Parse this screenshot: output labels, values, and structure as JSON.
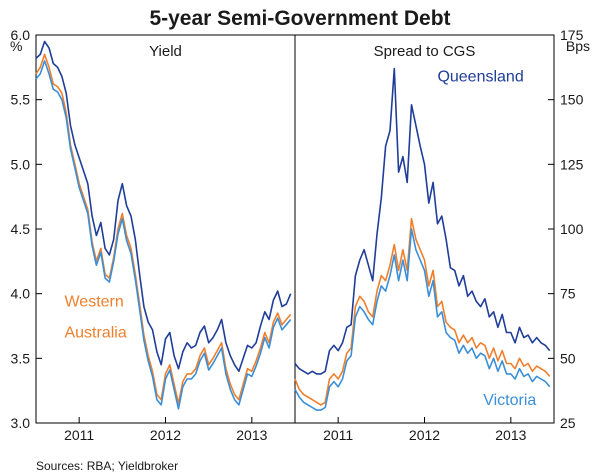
{
  "title": "5-year Semi-Government Debt",
  "source": "Sources: RBA; Yieldbroker",
  "colors": {
    "queensland": "#1f3d99",
    "western_australia": "#f07f2c",
    "victoria": "#3a8fd8",
    "axis": "#000000"
  },
  "chart_data": [
    {
      "type": "line",
      "title": "Yield",
      "y_unit": "%",
      "ylim": [
        3.0,
        6.0
      ],
      "yticks": [
        "3.0",
        "3.5",
        "4.0",
        "4.5",
        "5.0",
        "5.5",
        "6.0"
      ],
      "x_tick_labels": [
        "2011",
        "2012",
        "2013"
      ],
      "x_tick_centers": [
        2011.0,
        2012.0,
        2013.0
      ],
      "xlim": [
        2010.5,
        2013.5
      ],
      "grid": false,
      "series": [
        {
          "key": "queensland",
          "x": [
            2010.5,
            2010.55,
            2010.6,
            2010.65,
            2010.7,
            2010.75,
            2010.8,
            2010.85,
            2010.9,
            2010.95,
            2011.0,
            2011.05,
            2011.1,
            2011.15,
            2011.2,
            2011.25,
            2011.3,
            2011.35,
            2011.4,
            2011.45,
            2011.5,
            2011.55,
            2011.6,
            2011.65,
            2011.7,
            2011.75,
            2011.8,
            2011.85,
            2011.9,
            2011.95,
            2012.0,
            2012.05,
            2012.1,
            2012.15,
            2012.2,
            2012.25,
            2012.3,
            2012.35,
            2012.4,
            2012.45,
            2012.5,
            2012.55,
            2012.6,
            2012.65,
            2012.7,
            2012.75,
            2012.8,
            2012.85,
            2012.9,
            2012.95,
            2013.0,
            2013.05,
            2013.1,
            2013.15,
            2013.2,
            2013.25,
            2013.3,
            2013.35,
            2013.4,
            2013.45
          ],
          "values": [
            5.82,
            5.85,
            5.95,
            5.9,
            5.78,
            5.75,
            5.68,
            5.55,
            5.3,
            5.15,
            5.05,
            4.95,
            4.85,
            4.6,
            4.45,
            4.55,
            4.35,
            4.3,
            4.42,
            4.72,
            4.85,
            4.68,
            4.6,
            4.42,
            4.15,
            3.9,
            3.78,
            3.72,
            3.55,
            3.45,
            3.65,
            3.7,
            3.52,
            3.42,
            3.55,
            3.62,
            3.58,
            3.6,
            3.7,
            3.75,
            3.62,
            3.66,
            3.72,
            3.8,
            3.62,
            3.52,
            3.45,
            3.4,
            3.5,
            3.6,
            3.58,
            3.62,
            3.75,
            3.86,
            3.8,
            3.95,
            4.02,
            3.9,
            3.92,
            4.0
          ]
        },
        {
          "key": "western_australia",
          "name": "Western Australia",
          "x": [
            2010.5,
            2010.55,
            2010.6,
            2010.65,
            2010.7,
            2010.75,
            2010.8,
            2010.85,
            2010.9,
            2010.95,
            2011.0,
            2011.05,
            2011.1,
            2011.15,
            2011.2,
            2011.25,
            2011.3,
            2011.35,
            2011.4,
            2011.45,
            2011.5,
            2011.55,
            2011.6,
            2011.65,
            2011.7,
            2011.75,
            2011.8,
            2011.85,
            2011.9,
            2011.95,
            2012.0,
            2012.05,
            2012.1,
            2012.15,
            2012.2,
            2012.25,
            2012.3,
            2012.35,
            2012.4,
            2012.45,
            2012.5,
            2012.55,
            2012.6,
            2012.65,
            2012.7,
            2012.75,
            2012.8,
            2012.85,
            2012.9,
            2012.95,
            2013.0,
            2013.05,
            2013.1,
            2013.15,
            2013.2,
            2013.25,
            2013.3,
            2013.35,
            2013.4,
            2013.45
          ],
          "values": [
            5.7,
            5.75,
            5.85,
            5.75,
            5.62,
            5.6,
            5.55,
            5.4,
            5.15,
            5.0,
            4.85,
            4.75,
            4.65,
            4.4,
            4.25,
            4.35,
            4.15,
            4.12,
            4.28,
            4.5,
            4.62,
            4.45,
            4.35,
            4.15,
            3.92,
            3.68,
            3.52,
            3.4,
            3.22,
            3.18,
            3.38,
            3.45,
            3.3,
            3.15,
            3.32,
            3.38,
            3.38,
            3.42,
            3.52,
            3.58,
            3.45,
            3.5,
            3.56,
            3.62,
            3.42,
            3.3,
            3.22,
            3.18,
            3.3,
            3.42,
            3.4,
            3.48,
            3.58,
            3.7,
            3.62,
            3.78,
            3.85,
            3.76,
            3.8,
            3.84
          ]
        },
        {
          "key": "victoria",
          "x": [
            2010.5,
            2010.55,
            2010.6,
            2010.65,
            2010.7,
            2010.75,
            2010.8,
            2010.85,
            2010.9,
            2010.95,
            2011.0,
            2011.05,
            2011.1,
            2011.15,
            2011.2,
            2011.25,
            2011.3,
            2011.35,
            2011.4,
            2011.45,
            2011.5,
            2011.55,
            2011.6,
            2011.65,
            2011.7,
            2011.75,
            2011.8,
            2011.85,
            2011.9,
            2011.95,
            2012.0,
            2012.05,
            2012.1,
            2012.15,
            2012.2,
            2012.25,
            2012.3,
            2012.35,
            2012.4,
            2012.45,
            2012.5,
            2012.55,
            2012.6,
            2012.65,
            2012.7,
            2012.75,
            2012.8,
            2012.85,
            2012.9,
            2012.95,
            2013.0,
            2013.05,
            2013.1,
            2013.15,
            2013.2,
            2013.25,
            2013.3,
            2013.35,
            2013.4,
            2013.45
          ],
          "values": [
            5.66,
            5.7,
            5.8,
            5.7,
            5.58,
            5.56,
            5.5,
            5.36,
            5.12,
            4.97,
            4.82,
            4.72,
            4.62,
            4.37,
            4.22,
            4.32,
            4.12,
            4.09,
            4.25,
            4.46,
            4.58,
            4.41,
            4.31,
            4.11,
            3.88,
            3.64,
            3.48,
            3.36,
            3.18,
            3.14,
            3.34,
            3.41,
            3.26,
            3.11,
            3.28,
            3.34,
            3.34,
            3.38,
            3.48,
            3.54,
            3.41,
            3.46,
            3.52,
            3.58,
            3.38,
            3.26,
            3.18,
            3.14,
            3.26,
            3.38,
            3.36,
            3.44,
            3.54,
            3.66,
            3.58,
            3.74,
            3.81,
            3.72,
            3.76,
            3.8
          ]
        }
      ],
      "labels": [
        {
          "text": "Western",
          "series": "western_australia",
          "x": 2010.83,
          "y": 3.9
        },
        {
          "text": "Australia",
          "series": "western_australia",
          "x": 2010.83,
          "y": 3.66
        }
      ]
    },
    {
      "type": "line",
      "title": "Spread to CGS",
      "y_unit": "Bps",
      "ylim": [
        25,
        175
      ],
      "yticks": [
        "25",
        "50",
        "75",
        "100",
        "125",
        "150",
        "175"
      ],
      "x_tick_labels": [
        "2011",
        "2012",
        "2013"
      ],
      "x_tick_centers": [
        2011.0,
        2012.0,
        2013.0
      ],
      "xlim": [
        2010.5,
        2013.5
      ],
      "grid": false,
      "series": [
        {
          "key": "queensland",
          "name": "Queensland",
          "x": [
            2010.5,
            2010.55,
            2010.6,
            2010.65,
            2010.7,
            2010.75,
            2010.8,
            2010.85,
            2010.9,
            2010.95,
            2011.0,
            2011.05,
            2011.1,
            2011.15,
            2011.2,
            2011.25,
            2011.3,
            2011.35,
            2011.4,
            2011.45,
            2011.5,
            2011.55,
            2011.6,
            2011.65,
            2011.7,
            2011.75,
            2011.8,
            2011.85,
            2011.9,
            2011.95,
            2012.0,
            2012.05,
            2012.1,
            2012.15,
            2012.2,
            2012.25,
            2012.3,
            2012.35,
            2012.4,
            2012.45,
            2012.5,
            2012.55,
            2012.6,
            2012.65,
            2012.7,
            2012.75,
            2012.8,
            2012.85,
            2012.9,
            2012.95,
            2013.0,
            2013.05,
            2013.1,
            2013.15,
            2013.2,
            2013.25,
            2013.3,
            2013.35,
            2013.4,
            2013.45
          ],
          "values": [
            48,
            46,
            45,
            44,
            45,
            44,
            44,
            45,
            53,
            55,
            53,
            56,
            62,
            63,
            82,
            88,
            92,
            86,
            80,
            98,
            112,
            132,
            138,
            162,
            122,
            128,
            118,
            148,
            140,
            132,
            125,
            110,
            118,
            102,
            105,
            96,
            85,
            84,
            78,
            82,
            74,
            76,
            72,
            70,
            73,
            66,
            68,
            62,
            67,
            60,
            60,
            56,
            62,
            58,
            59,
            56,
            58,
            56,
            55,
            53
          ]
        },
        {
          "key": "western_australia",
          "x": [
            2010.5,
            2010.55,
            2010.6,
            2010.65,
            2010.7,
            2010.75,
            2010.8,
            2010.85,
            2010.9,
            2010.95,
            2011.0,
            2011.05,
            2011.1,
            2011.15,
            2011.2,
            2011.25,
            2011.3,
            2011.35,
            2011.4,
            2011.45,
            2011.5,
            2011.55,
            2011.6,
            2011.65,
            2011.7,
            2011.75,
            2011.8,
            2011.85,
            2011.9,
            2011.95,
            2012.0,
            2012.05,
            2012.1,
            2012.15,
            2012.2,
            2012.25,
            2012.3,
            2012.35,
            2012.4,
            2012.45,
            2012.5,
            2012.55,
            2012.6,
            2012.65,
            2012.7,
            2012.75,
            2012.8,
            2012.85,
            2012.9,
            2012.95,
            2013.0,
            2013.05,
            2013.1,
            2013.15,
            2013.2,
            2013.25,
            2013.3,
            2013.35,
            2013.4,
            2013.45
          ],
          "values": [
            42,
            38,
            36,
            35,
            34,
            33,
            32,
            33,
            42,
            44,
            42,
            45,
            52,
            54,
            70,
            74,
            72,
            68,
            66,
            76,
            82,
            80,
            86,
            94,
            84,
            92,
            84,
            104,
            96,
            92,
            88,
            78,
            84,
            70,
            72,
            64,
            62,
            61,
            56,
            59,
            56,
            58,
            54,
            56,
            55,
            50,
            54,
            49,
            53,
            48,
            48,
            46,
            50,
            47,
            48,
            45,
            47,
            46,
            45,
            43
          ]
        },
        {
          "key": "victoria",
          "name": "Victoria",
          "x": [
            2010.5,
            2010.55,
            2010.6,
            2010.65,
            2010.7,
            2010.75,
            2010.8,
            2010.85,
            2010.9,
            2010.95,
            2011.0,
            2011.05,
            2011.1,
            2011.15,
            2011.2,
            2011.25,
            2011.3,
            2011.35,
            2011.4,
            2011.45,
            2011.5,
            2011.55,
            2011.6,
            2011.65,
            2011.7,
            2011.75,
            2011.8,
            2011.85,
            2011.9,
            2011.95,
            2012.0,
            2012.05,
            2012.1,
            2012.15,
            2012.2,
            2012.25,
            2012.3,
            2012.35,
            2012.4,
            2012.45,
            2012.5,
            2012.55,
            2012.6,
            2012.65,
            2012.7,
            2012.75,
            2012.8,
            2012.85,
            2012.9,
            2012.95,
            2013.0,
            2013.05,
            2013.1,
            2013.15,
            2013.2,
            2013.25,
            2013.3,
            2013.35,
            2013.4,
            2013.45
          ],
          "values": [
            38,
            35,
            33,
            32,
            31,
            30,
            30,
            31,
            39,
            41,
            39,
            42,
            49,
            51,
            66,
            70,
            68,
            65,
            63,
            72,
            78,
            76,
            82,
            90,
            80,
            88,
            80,
            100,
            92,
            88,
            84,
            74,
            80,
            66,
            68,
            60,
            58,
            57,
            52,
            55,
            52,
            54,
            50,
            52,
            51,
            46,
            50,
            45,
            49,
            44,
            44,
            42,
            46,
            43,
            44,
            41,
            43,
            42,
            41,
            39
          ]
        }
      ],
      "labels": [
        {
          "text": "Queensland",
          "series": "queensland",
          "x": 2012.15,
          "y": 157
        },
        {
          "text": "Victoria",
          "series": "victoria",
          "x": 2012.68,
          "y": 32
        }
      ]
    }
  ]
}
